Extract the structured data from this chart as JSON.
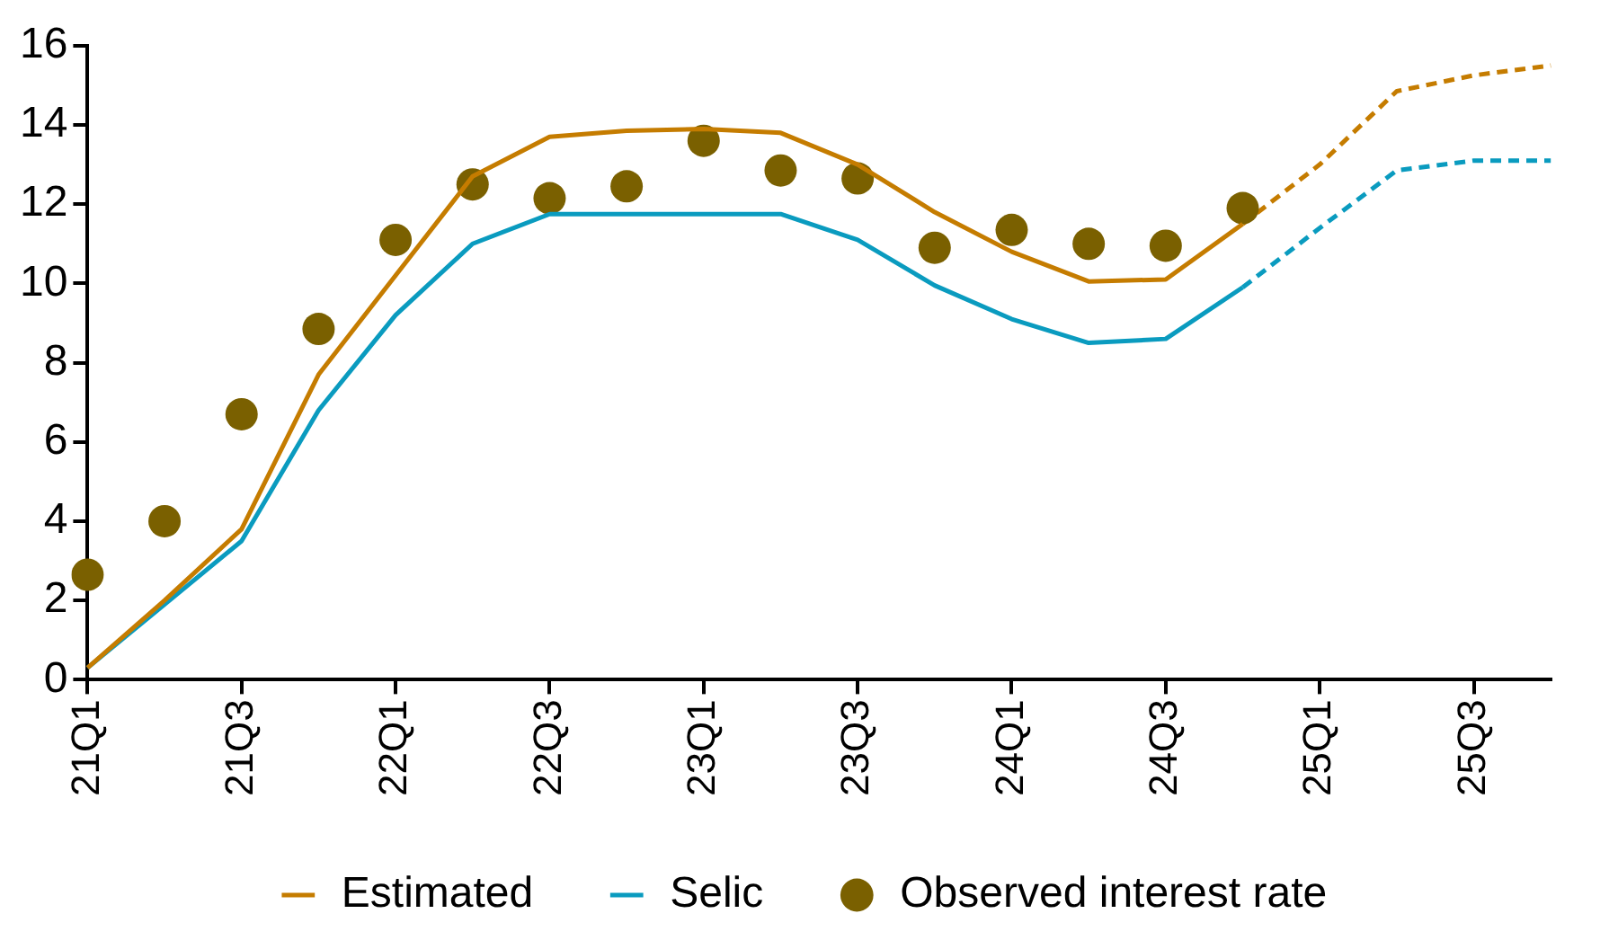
{
  "chart_data": {
    "type": "line",
    "categories": [
      "21Q1",
      null,
      "21Q3",
      null,
      "22Q1",
      null,
      "22Q3",
      null,
      "23Q1",
      null,
      "23Q3",
      null,
      "24Q1",
      null,
      "24Q3",
      null,
      "25Q1",
      null,
      "25Q3",
      null
    ],
    "ylim": [
      0,
      16
    ],
    "yticks": [
      0,
      2,
      4,
      6,
      8,
      10,
      12,
      14,
      16
    ],
    "grid": false,
    "legend": "bottom",
    "series": [
      {
        "name": "Estimated",
        "color": "#c57c00",
        "line_style": "solid",
        "values": [
          0.3,
          2.0,
          3.8,
          7.7,
          10.2,
          12.7,
          13.7,
          13.85,
          13.9,
          13.8,
          13.0,
          11.8,
          10.8,
          10.05,
          10.1,
          11.5,
          null,
          null,
          null,
          null
        ]
      },
      {
        "name": "Selic",
        "color": "#0a9bbf",
        "line_style": "solid",
        "values": [
          0.3,
          1.9,
          3.5,
          6.8,
          9.2,
          11.0,
          11.75,
          11.75,
          11.75,
          11.75,
          11.1,
          9.95,
          9.1,
          8.5,
          8.6,
          9.9,
          null,
          null,
          null,
          null
        ]
      },
      {
        "name": "Observed interest rate",
        "type": "scatter",
        "marker": "circle",
        "color": "#7a6000",
        "values": [
          2.65,
          4.0,
          6.7,
          8.85,
          11.1,
          12.5,
          12.15,
          12.45,
          13.6,
          12.85,
          12.65,
          10.9,
          11.35,
          11.0,
          10.95,
          11.9,
          null,
          null,
          null,
          null
        ]
      },
      {
        "color": "#c57c00",
        "line_style": "dashed",
        "values": [
          null,
          null,
          null,
          null,
          null,
          null,
          null,
          null,
          null,
          null,
          null,
          null,
          null,
          null,
          null,
          11.5,
          13.0,
          14.85,
          15.25,
          15.5
        ]
      },
      {
        "color": "#0a9bbf",
        "line_style": "dashed",
        "values": [
          null,
          null,
          null,
          null,
          null,
          null,
          null,
          null,
          null,
          null,
          null,
          null,
          null,
          null,
          null,
          9.9,
          11.4,
          12.85,
          13.1,
          13.1
        ]
      }
    ]
  }
}
